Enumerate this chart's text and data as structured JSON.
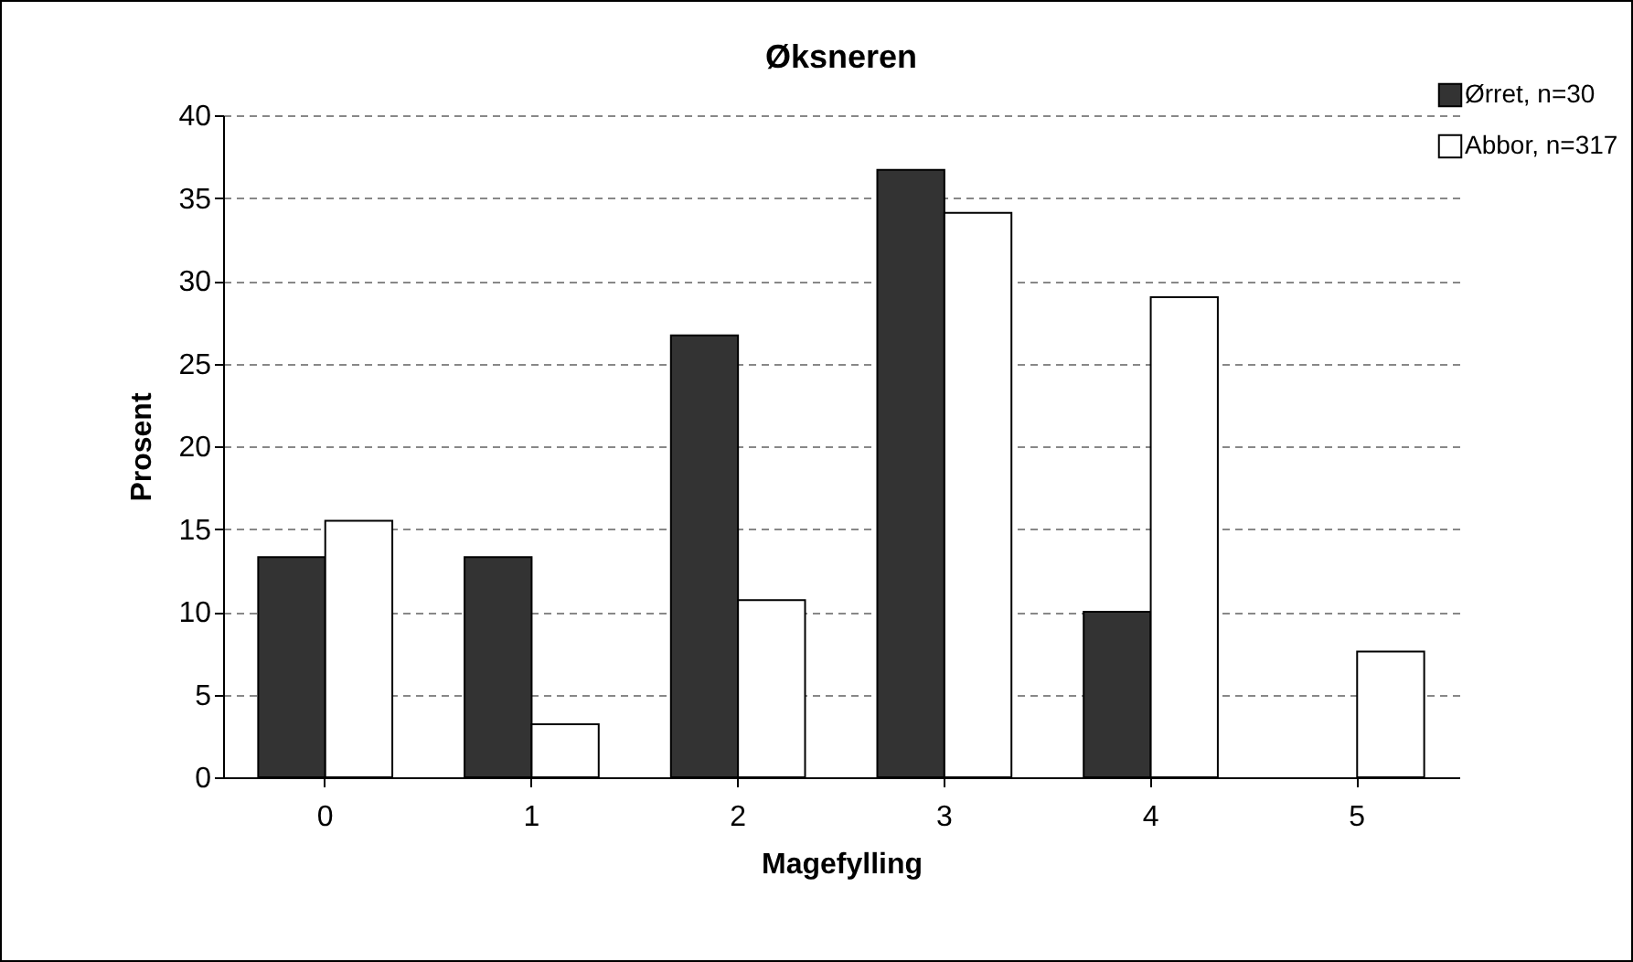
{
  "chart_data": {
    "type": "bar",
    "title": "Øksneren",
    "xlabel": "Magefylling",
    "ylabel": "Prosent",
    "categories": [
      "0",
      "1",
      "2",
      "3",
      "4",
      "5"
    ],
    "series": [
      {
        "name": "Ørret, n=30",
        "color": "#333333",
        "values": [
          13.3,
          13.3,
          26.7,
          36.7,
          10,
          null
        ]
      },
      {
        "name": "Abbor, n=317",
        "color": "#ffffff",
        "values": [
          15.5,
          3.2,
          10.7,
          34.1,
          29.0,
          7.6
        ]
      }
    ],
    "ylim": [
      0,
      40
    ],
    "yticks": [
      0,
      5,
      10,
      15,
      20,
      25,
      30,
      35,
      40
    ],
    "grid": "y",
    "legend": "top right"
  }
}
